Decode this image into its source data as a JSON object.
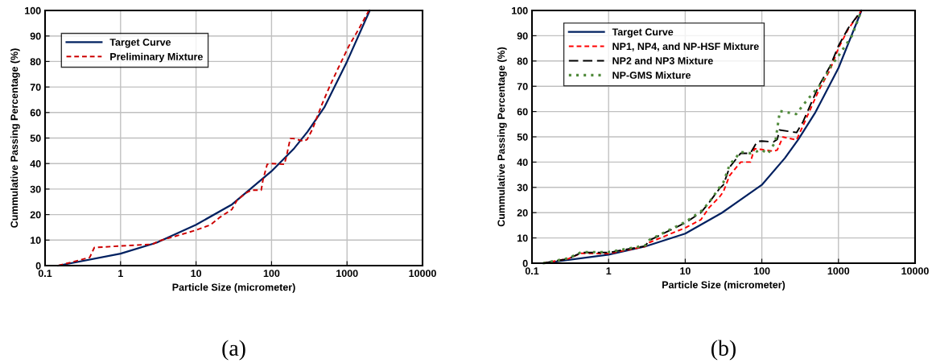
{
  "chart_data": [
    {
      "type": "line",
      "xlabel": "Particle Size (micrometer)",
      "ylabel": "Cummulative Passing Percentage (%)",
      "log": "x",
      "xlim": [
        0.1,
        10000
      ],
      "ylim": [
        0,
        100
      ],
      "xticks": [
        0.1,
        1,
        10,
        100,
        1000,
        10000
      ],
      "yticks": [
        0,
        10,
        20,
        30,
        40,
        50,
        60,
        70,
        80,
        90,
        100
      ],
      "grid": true,
      "legend": "top left",
      "marker": "none",
      "annotations": [
        "(a)"
      ],
      "series": [
        {
          "name": "Target Curve",
          "color": "#002060",
          "line_style": "solid",
          "x": [
            0.15,
            1,
            3,
            10,
            30,
            100,
            200,
            300,
            500,
            1000,
            2000
          ],
          "values": [
            0,
            4.7,
            9,
            16,
            24,
            37,
            46,
            52.5,
            62,
            80,
            100
          ]
        },
        {
          "name": "Preliminary Mixture",
          "color": "#cc0000",
          "line_style": "dashed",
          "x": [
            0.15,
            0.39,
            0.45,
            2.67,
            3.1,
            10,
            15.6,
            20.6,
            29.8,
            35,
            46.6,
            55,
            73,
            77,
            87.5,
            100,
            148,
            158,
            177,
            197,
            262,
            296,
            350,
            462,
            592,
            758,
            1059,
            1411,
            1950
          ],
          "values": [
            0,
            3.2,
            7.1,
            8.4,
            9.5,
            13.9,
            16,
            18.9,
            22,
            25.7,
            28.6,
            29.6,
            29.6,
            33.6,
            39.7,
            40,
            39.7,
            43,
            49.8,
            49.8,
            48.8,
            49.4,
            53.6,
            63,
            70.4,
            77.2,
            86.1,
            92.4,
            100
          ]
        }
      ]
    },
    {
      "type": "line",
      "xlabel": "Particle Size (micrometer)",
      "ylabel": "Cummulative Passing Percentage (%)",
      "log": "x",
      "xlim": [
        0.1,
        10000
      ],
      "ylim": [
        0,
        100
      ],
      "xticks": [
        0.1,
        1,
        10,
        100,
        1000,
        10000
      ],
      "yticks": [
        0,
        10,
        20,
        30,
        40,
        50,
        60,
        70,
        80,
        90,
        100
      ],
      "grid": true,
      "legend": "top left",
      "marker": "none",
      "annotations": [
        "(b)"
      ],
      "series": [
        {
          "name": "Target Curve",
          "color": "#002060",
          "line_style": "solid",
          "x": [
            0.14,
            1,
            3,
            10,
            30,
            100,
            200,
            300,
            500,
            1000,
            2000
          ],
          "values": [
            0,
            3.4,
            6.6,
            11.7,
            19.9,
            31,
            41.6,
            49,
            59.7,
            77.2,
            100
          ]
        },
        {
          "name": "NP1, NP4, and NP-HSF Mixture",
          "color": "#ff0000",
          "line_style": "dashed",
          "x": [
            0.14,
            0.3,
            0.44,
            1,
            3,
            3.4,
            10,
            16,
            20.5,
            28,
            31.5,
            38,
            53,
            71,
            80,
            100,
            142,
            159,
            188,
            284,
            345,
            550,
            780,
            1000,
            1340,
            2000
          ],
          "values": [
            0,
            1.8,
            3.9,
            3.8,
            6.6,
            8.2,
            14,
            17.2,
            22,
            26.2,
            28.3,
            34.7,
            40,
            40,
            45.3,
            45,
            44.3,
            44.8,
            49.9,
            48.8,
            54.4,
            68.2,
            76.6,
            85.1,
            92.6,
            100
          ]
        },
        {
          "name": "NP2 and NP3 Mixture",
          "color": "#000000",
          "line_style": "longdash",
          "x": [
            0.14,
            0.3,
            0.44,
            1,
            3,
            3.4,
            10,
            16,
            20.5,
            28,
            31.5,
            38,
            53,
            71,
            87,
            100,
            142,
            159,
            170,
            284,
            345,
            550,
            780,
            1000,
            1340,
            2000
          ],
          "values": [
            0,
            1.8,
            4.2,
            4.2,
            6.8,
            9,
            16,
            20,
            24,
            29.5,
            31,
            38,
            43.5,
            43.5,
            48.2,
            48.3,
            48,
            49,
            52.7,
            51.7,
            56,
            70,
            78,
            86,
            93,
            100
          ]
        },
        {
          "name": "NP-GMS Mixture",
          "color": "#4f8a3a",
          "line_style": "dotted",
          "x": [
            0.14,
            0.3,
            0.44,
            1,
            3,
            3.4,
            10,
            16,
            20.5,
            28,
            31.5,
            38,
            53,
            71,
            100,
            120,
            150,
            172,
            280,
            400,
            600,
            800,
            1000,
            1500,
            2000
          ],
          "values": [
            0,
            2,
            4.4,
            4.4,
            7,
            9.2,
            16.3,
            20.5,
            24,
            30,
            32,
            39,
            44,
            43.5,
            44.8,
            43.3,
            48,
            60.2,
            59,
            65,
            71,
            78,
            82,
            90,
            100
          ]
        }
      ]
    }
  ]
}
